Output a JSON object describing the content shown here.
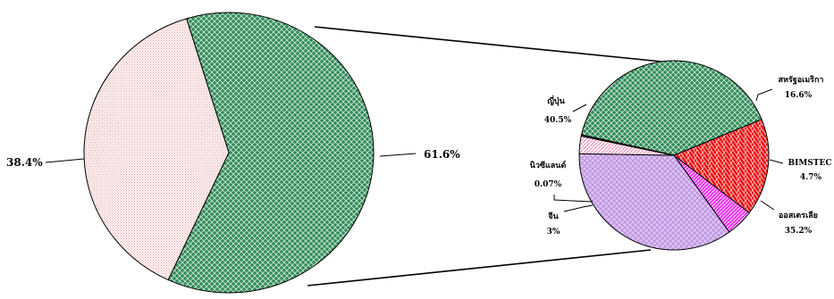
{
  "chart_data": [
    {
      "type": "pie",
      "role": "main",
      "slices": [
        {
          "label": "61.6%",
          "value": 61.6,
          "color": "#2e8b57",
          "pattern": "green-cross"
        },
        {
          "label": "38.4%",
          "value": 38.4,
          "color": "#fde8e8",
          "pattern": "pink-dots"
        }
      ]
    },
    {
      "type": "pie",
      "role": "breakdown",
      "slices": [
        {
          "name": "ญี่ปุ่น",
          "label": "40.5%",
          "value": 40.5,
          "color": "#2e8b57",
          "pattern": "green-cross"
        },
        {
          "name": "สหรัฐอเมริกา",
          "label": "16.6%",
          "value": 16.6,
          "color": "#ee1111",
          "pattern": "red-brick"
        },
        {
          "name": "BIMSTEC",
          "label": "4.7%",
          "value": 4.7,
          "color": "#ee33ee",
          "pattern": "magenta-diag"
        },
        {
          "name": "ออสเตรเลีย",
          "label": "35.2%",
          "value": 35.2,
          "color": "#d8b8f0",
          "pattern": "lilac-cross"
        },
        {
          "name": "จีน",
          "label": "3%",
          "value": 3.0,
          "color": "#fff0f5",
          "pattern": "pink-diag"
        },
        {
          "name": "นิวซีแลนด์",
          "label": "0.07%",
          "value": 0.07,
          "color": "#8a2be2",
          "pattern": "none"
        }
      ]
    }
  ]
}
